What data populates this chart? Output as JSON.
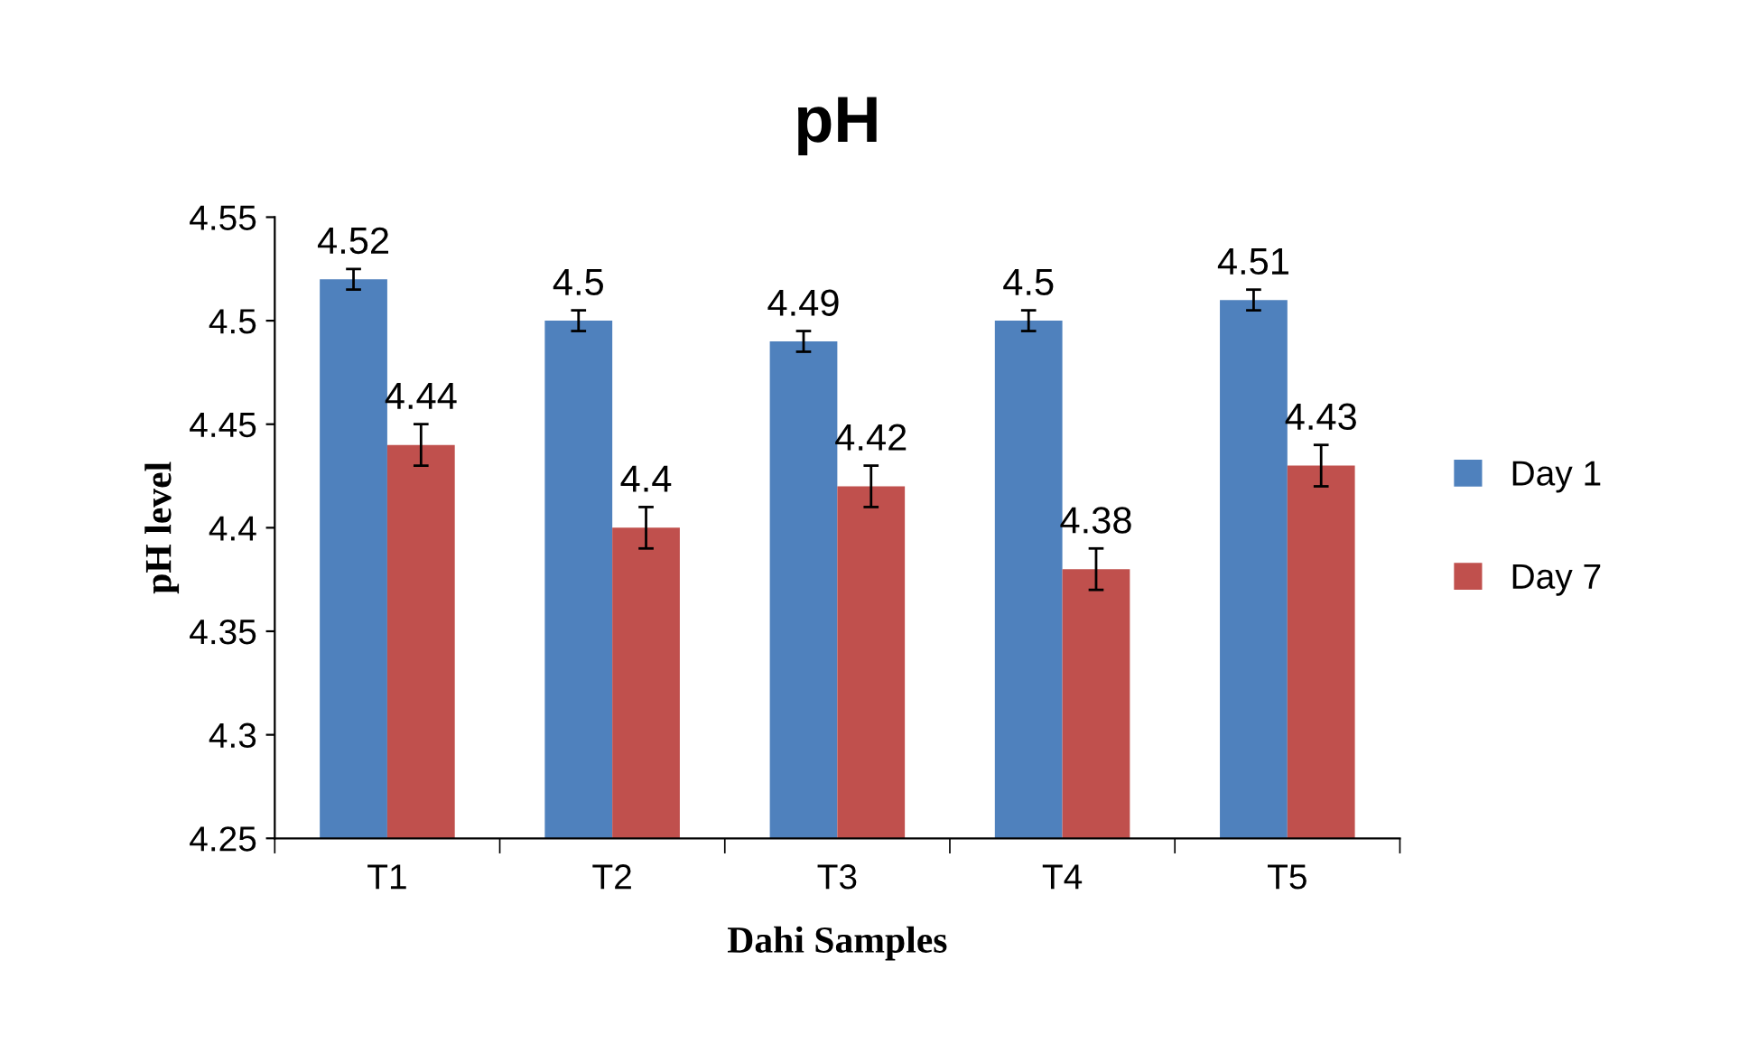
{
  "chart_data": {
    "type": "bar",
    "title": "pH",
    "xlabel": "Dahi Samples",
    "ylabel": "pH level",
    "categories": [
      "T1",
      "T2",
      "T3",
      "T4",
      "T5"
    ],
    "series": [
      {
        "name": "Day 1",
        "color": "#4f81bd",
        "values": [
          4.52,
          4.5,
          4.49,
          4.5,
          4.51
        ],
        "errors": [
          0.005,
          0.005,
          0.005,
          0.005,
          0.005
        ]
      },
      {
        "name": "Day 7",
        "color": "#c0504d",
        "values": [
          4.44,
          4.4,
          4.42,
          4.38,
          4.43
        ],
        "errors": [
          0.01,
          0.01,
          0.01,
          0.01,
          0.01
        ]
      }
    ],
    "ylim": [
      4.25,
      4.55
    ],
    "yticks": [
      4.25,
      4.3,
      4.35,
      4.4,
      4.45,
      4.5,
      4.55
    ],
    "data_labels": true,
    "grid": false,
    "legend": "right"
  }
}
